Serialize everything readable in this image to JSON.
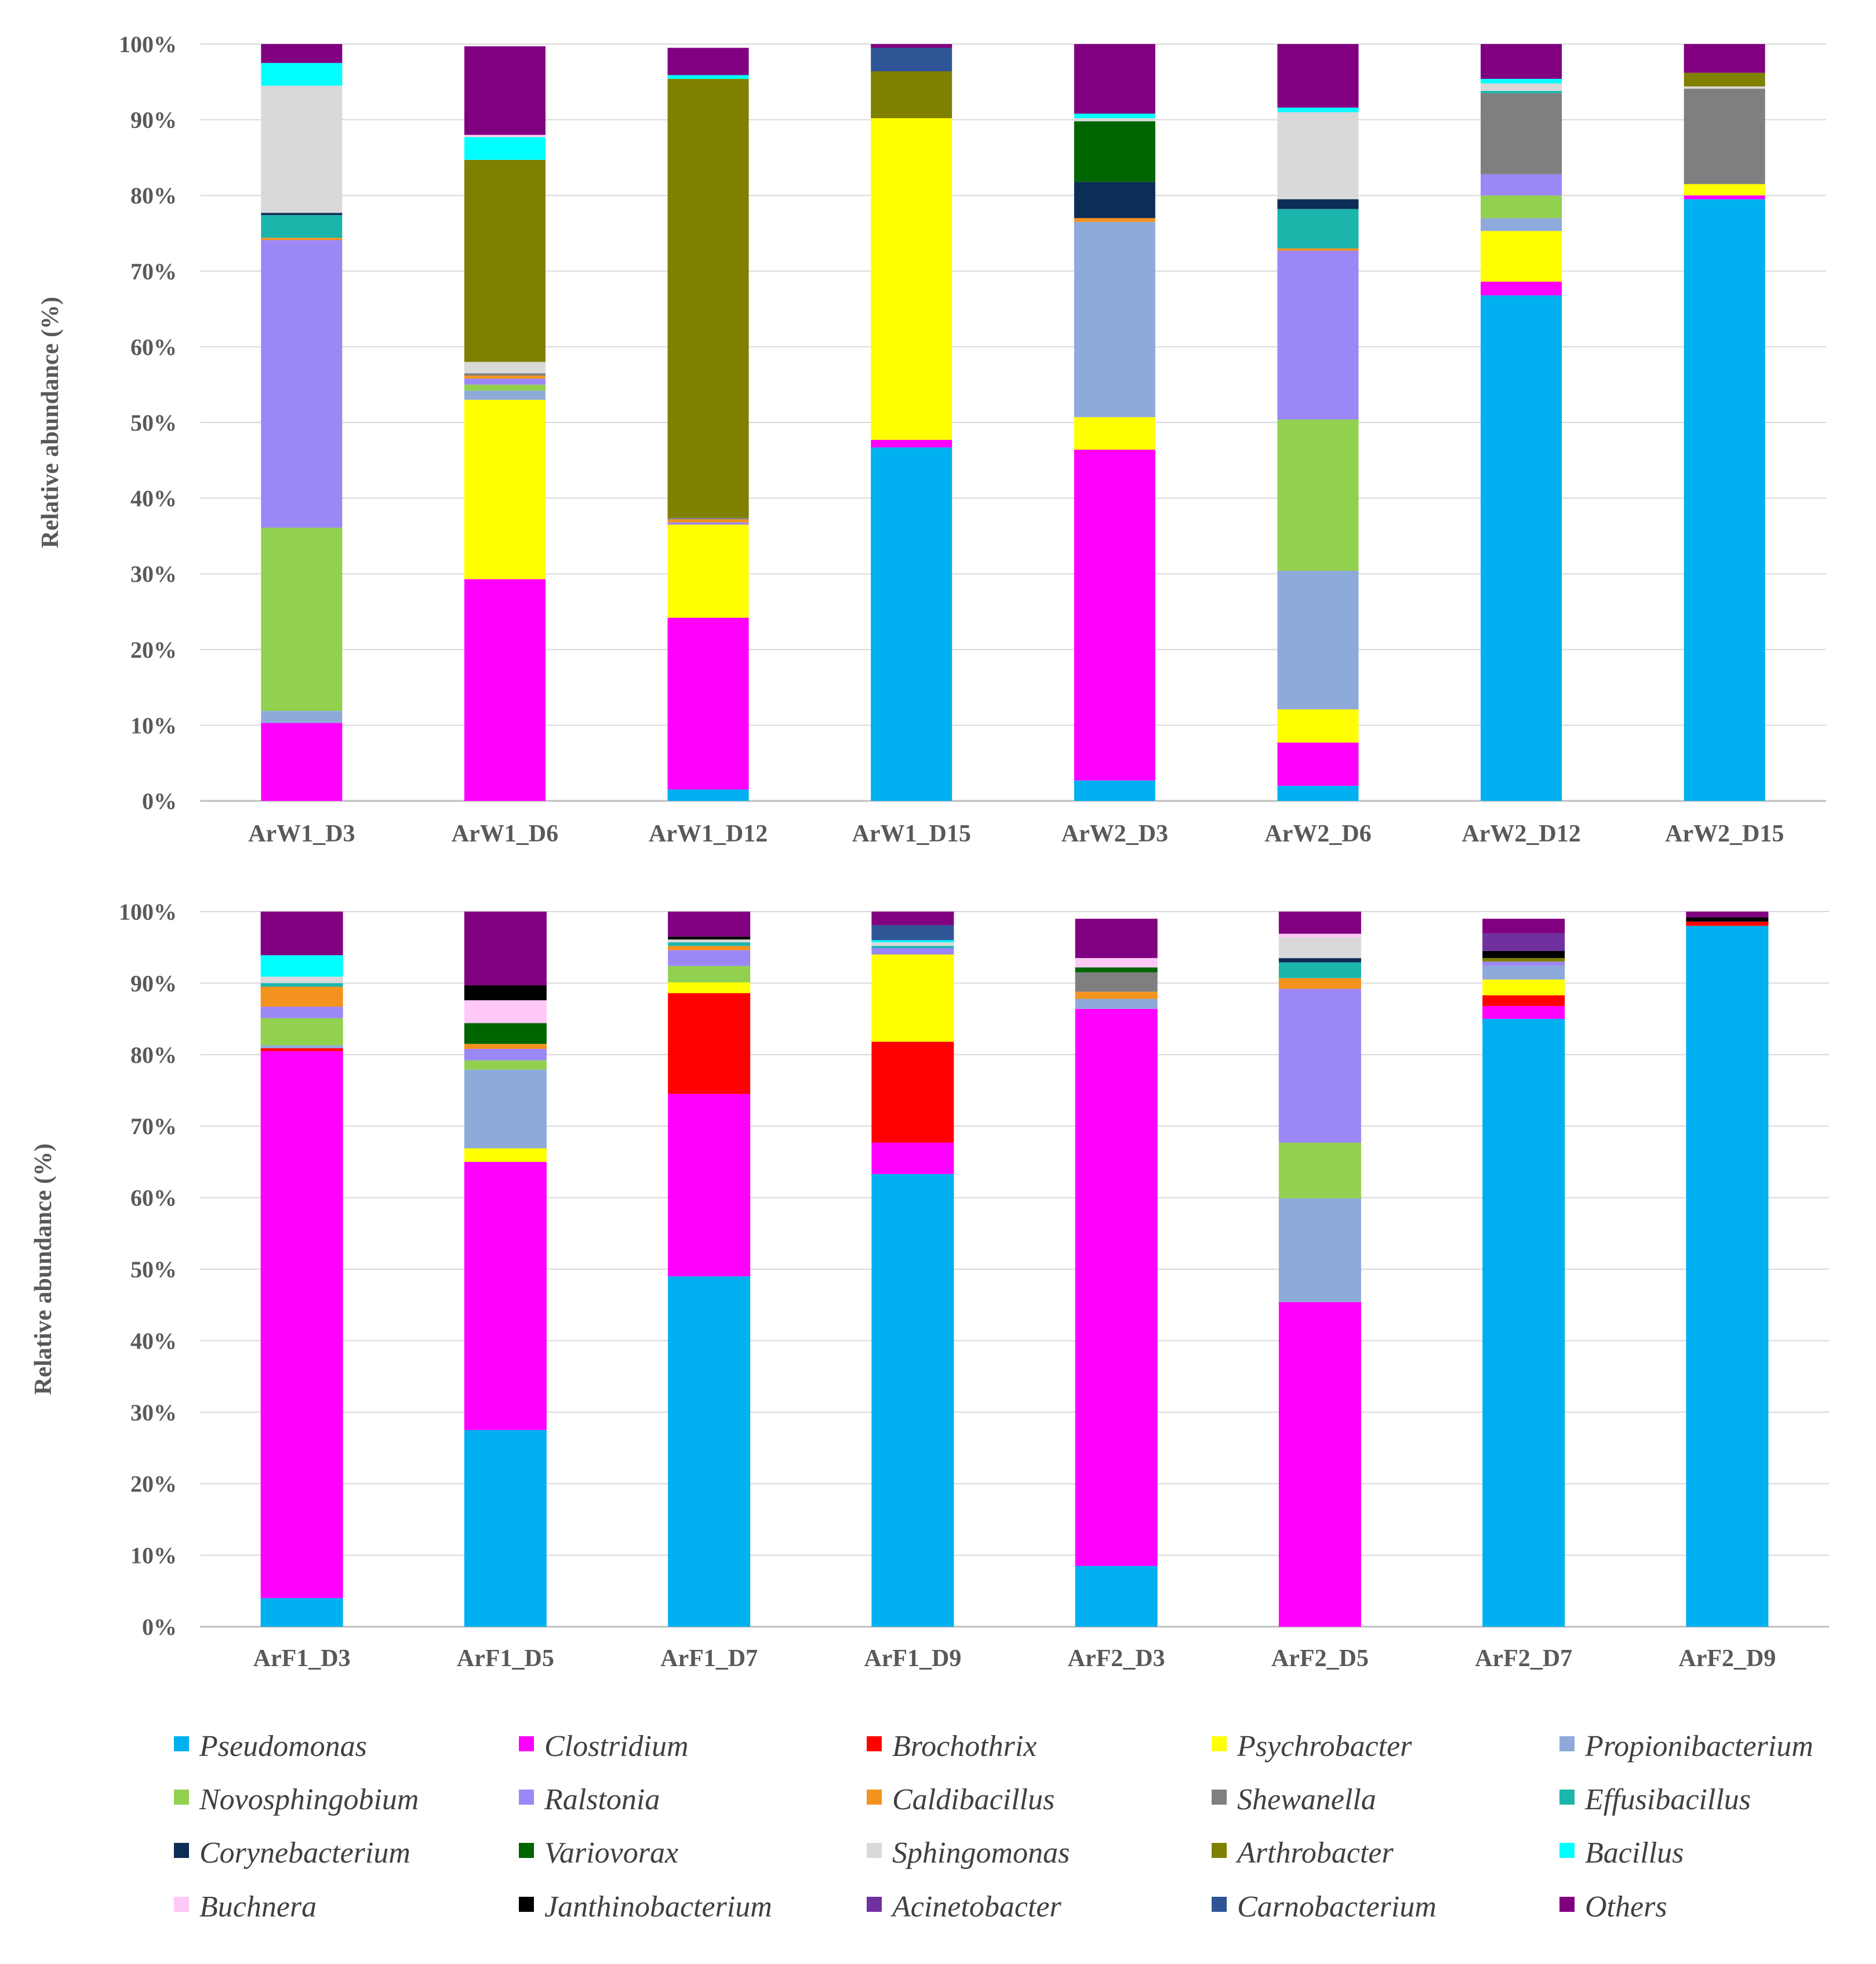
{
  "genera": [
    {
      "name": "Pseudomonas",
      "color": "#00b0f0"
    },
    {
      "name": "Clostridium",
      "color": "#ff00ff"
    },
    {
      "name": "Brochothrix",
      "color": "#ff0000"
    },
    {
      "name": "Psychrobacter",
      "color": "#ffff00"
    },
    {
      "name": "Propionibacterium",
      "color": "#8eaadb"
    },
    {
      "name": "Novosphingobium",
      "color": "#92d050"
    },
    {
      "name": "Ralstonia",
      "color": "#9b87f5"
    },
    {
      "name": "Caldibacillus",
      "color": "#f4921e"
    },
    {
      "name": "Shewanella",
      "color": "#7f7f7f"
    },
    {
      "name": "Effusibacillus",
      "color": "#1bb5ac"
    },
    {
      "name": "Corynebacterium",
      "color": "#0c2d55"
    },
    {
      "name": "Variovorax",
      "color": "#006400"
    },
    {
      "name": "Sphingomonas",
      "color": "#d9d9d9"
    },
    {
      "name": "Arthrobacter",
      "color": "#808000"
    },
    {
      "name": "Bacillus",
      "color": "#00ffff"
    },
    {
      "name": "Buchnera",
      "color": "#ffc8f5"
    },
    {
      "name": "Janthinobacterium",
      "color": "#000000"
    },
    {
      "name": "Acinetobacter",
      "color": "#7030a0"
    },
    {
      "name": "Carnobacterium",
      "color": "#2f5597"
    },
    {
      "name": "Others",
      "color": "#800080"
    }
  ],
  "chart_data": [
    {
      "type": "bar",
      "stacked": true,
      "ylabel": "Relative abundance  (%)",
      "ylim": [
        0,
        100
      ],
      "yticks": [
        "0%",
        "10%",
        "20%",
        "30%",
        "40%",
        "50%",
        "60%",
        "70%",
        "80%",
        "90%",
        "100%"
      ],
      "grid": true,
      "categories": [
        "ArW1_D3",
        "ArW1_D6",
        "ArW1_D12",
        "ArW1_D15",
        "ArW2_D3",
        "ArW2_D6",
        "ArW2_D12",
        "ArW2_D15"
      ],
      "series": [
        {
          "name": "Pseudomonas",
          "values": [
            0,
            0,
            1.5,
            46.7,
            2.7,
            2.0,
            66.8,
            79.5
          ]
        },
        {
          "name": "Clostridium",
          "values": [
            10.3,
            29.3,
            22.7,
            1.0,
            43.7,
            5.7,
            1.8,
            0.5
          ]
        },
        {
          "name": "Brochothrix",
          "values": [
            0,
            0,
            0,
            0,
            0,
            0,
            0,
            0
          ]
        },
        {
          "name": "Psychrobacter",
          "values": [
            0,
            23.7,
            12.3,
            42.5,
            4.3,
            4.4,
            6.7,
            1.5
          ]
        },
        {
          "name": "Propionibacterium",
          "values": [
            1.6,
            1.2,
            0,
            0,
            25.8,
            18.3,
            1.7,
            0
          ]
        },
        {
          "name": "Novosphingobium",
          "values": [
            24.2,
            0.8,
            0,
            0,
            0,
            20.0,
            3.0,
            0
          ]
        },
        {
          "name": "Ralstonia",
          "values": [
            38.0,
            0.8,
            0.3,
            0,
            0,
            22.3,
            2.8,
            0
          ]
        },
        {
          "name": "Caldibacillus",
          "values": [
            0.3,
            0.4,
            0.4,
            0,
            0.5,
            0.3,
            0,
            0
          ]
        },
        {
          "name": "Shewanella",
          "values": [
            0,
            0.3,
            0.2,
            0,
            0,
            0,
            10.7,
            12.6
          ]
        },
        {
          "name": "Effusibacillus",
          "values": [
            3.0,
            0,
            0,
            0,
            0,
            5.2,
            0.3,
            0
          ]
        },
        {
          "name": "Corynebacterium",
          "values": [
            0.3,
            0,
            0,
            0,
            4.8,
            1.3,
            0,
            0
          ]
        },
        {
          "name": "Variovorax",
          "values": [
            0,
            0,
            0,
            0,
            8.0,
            0,
            0,
            0
          ]
        },
        {
          "name": "Sphingomonas",
          "values": [
            16.8,
            1.5,
            0,
            0,
            0.4,
            11.5,
            1.0,
            0.3
          ]
        },
        {
          "name": "Arthrobacter",
          "values": [
            0,
            26.7,
            58.0,
            6.2,
            0,
            0,
            0,
            1.8
          ]
        },
        {
          "name": "Bacillus",
          "values": [
            3.0,
            3.0,
            0.5,
            0,
            0.6,
            0.6,
            0.6,
            0
          ]
        },
        {
          "name": "Buchnera",
          "values": [
            0,
            0.3,
            0,
            0,
            0,
            0,
            0,
            0
          ]
        },
        {
          "name": "Janthinobacterium",
          "values": [
            0,
            0,
            0,
            0,
            0,
            0,
            0,
            0
          ]
        },
        {
          "name": "Acinetobacter",
          "values": [
            0,
            0,
            0,
            0,
            0,
            0,
            0,
            0
          ]
        },
        {
          "name": "Carnobacterium",
          "values": [
            0,
            0,
            0,
            3.1,
            0,
            0,
            0,
            0
          ]
        },
        {
          "name": "Others",
          "values": [
            2.5,
            11.7,
            3.6,
            0.5,
            9.2,
            8.4,
            4.6,
            3.8
          ]
        }
      ]
    },
    {
      "type": "bar",
      "stacked": true,
      "ylabel": "Relative abundance  (%)",
      "ylim": [
        0,
        100
      ],
      "yticks": [
        "0%",
        "10%",
        "20%",
        "30%",
        "40%",
        "50%",
        "60%",
        "70%",
        "80%",
        "90%",
        "100%"
      ],
      "grid": true,
      "categories": [
        "ArF1_D3",
        "ArF1_D5",
        "ArF1_D7",
        "ArF1_D9",
        "ArF2_D3",
        "ArF2_D5",
        "ArF2_D7",
        "ArF2_D9"
      ],
      "series": [
        {
          "name": "Pseudomonas",
          "values": [
            4.0,
            27.5,
            49.0,
            63.3,
            8.5,
            0,
            85.0,
            98.0
          ]
        },
        {
          "name": "Clostridium",
          "values": [
            76.5,
            37.5,
            25.5,
            4.4,
            77.9,
            45.4,
            1.8,
            0
          ]
        },
        {
          "name": "Brochothrix",
          "values": [
            0.4,
            0,
            14.1,
            14.1,
            0,
            0,
            1.5,
            0.6
          ]
        },
        {
          "name": "Psychrobacter",
          "values": [
            0,
            1.9,
            1.5,
            12.2,
            0,
            0,
            2.2,
            0
          ]
        },
        {
          "name": "Propionibacterium",
          "values": [
            0.4,
            11.0,
            0,
            0,
            1.4,
            14.5,
            1.9,
            0
          ]
        },
        {
          "name": "Novosphingobium",
          "values": [
            3.8,
            1.3,
            2.3,
            0,
            0,
            7.8,
            0,
            0
          ]
        },
        {
          "name": "Ralstonia",
          "values": [
            1.6,
            1.6,
            2.2,
            0.9,
            0,
            21.5,
            0.6,
            0
          ]
        },
        {
          "name": "Caldibacillus",
          "values": [
            2.8,
            0.7,
            0.6,
            0,
            1.0,
            1.5,
            0,
            0
          ]
        },
        {
          "name": "Shewanella",
          "values": [
            0,
            0,
            0,
            0,
            2.7,
            0,
            0,
            0
          ]
        },
        {
          "name": "Effusibacillus",
          "values": [
            0.5,
            0,
            0.5,
            0.3,
            0,
            2.2,
            0,
            0
          ]
        },
        {
          "name": "Corynebacterium",
          "values": [
            0,
            0,
            0,
            0,
            0,
            0.6,
            0,
            0
          ]
        },
        {
          "name": "Variovorax",
          "values": [
            0,
            2.9,
            0,
            0,
            0.7,
            0,
            0,
            0
          ]
        },
        {
          "name": "Sphingomonas",
          "values": [
            0.9,
            0,
            0.4,
            0.5,
            0,
            2.9,
            0,
            0
          ]
        },
        {
          "name": "Arthrobacter",
          "values": [
            0,
            0,
            0,
            0,
            0,
            0,
            0.5,
            0
          ]
        },
        {
          "name": "Bacillus",
          "values": [
            3.0,
            0,
            0,
            0.3,
            0,
            0,
            0,
            0
          ]
        },
        {
          "name": "Buchnera",
          "values": [
            0,
            3.2,
            0,
            0,
            1.3,
            0.5,
            0,
            0
          ]
        },
        {
          "name": "Janthinobacterium",
          "values": [
            0,
            2.1,
            0.4,
            0,
            0,
            0,
            1.0,
            0.6
          ]
        },
        {
          "name": "Acinetobacter",
          "values": [
            0,
            0,
            0,
            0,
            0,
            0,
            2.5,
            0
          ]
        },
        {
          "name": "Carnobacterium",
          "values": [
            0,
            0,
            0,
            2.1,
            0,
            0,
            0,
            0
          ]
        },
        {
          "name": "Others",
          "values": [
            6.1,
            10.3,
            3.5,
            1.9,
            5.5,
            3.1,
            2.0,
            0.8
          ]
        }
      ]
    }
  ]
}
